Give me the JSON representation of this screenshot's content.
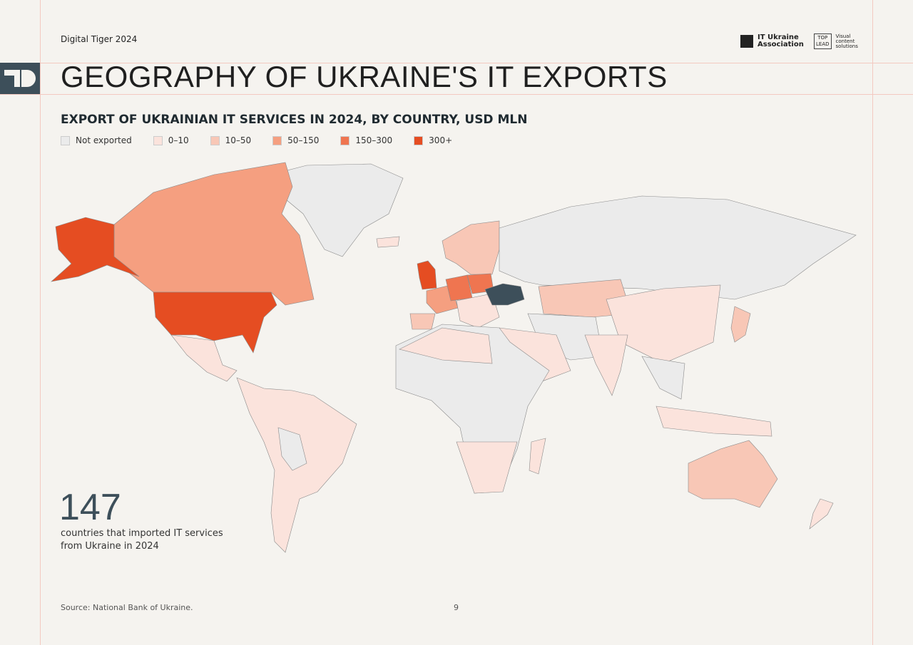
{
  "header": {
    "report": "Digital Tiger 2024",
    "logo_primary": [
      "IT Ukraine",
      "Association"
    ],
    "logo_secondary_box": [
      "TOP",
      "LEAD"
    ],
    "logo_secondary_text": [
      "Visual",
      "content",
      "solutions"
    ]
  },
  "title": "GEOGRAPHY OF UKRAINE'S IT EXPORTS",
  "map": {
    "subtitle": "EXPORT OF UKRAINIAN IT SERVICES IN 2024, BY COUNTRY, USD MLN",
    "legend": [
      {
        "label": "Not exported",
        "color": "#ebebeb"
      },
      {
        "label": "0–10",
        "color": "#fbe3dc"
      },
      {
        "label": "10–50",
        "color": "#f8c7b6"
      },
      {
        "label": "50–150",
        "color": "#f59f80"
      },
      {
        "label": "150–300",
        "color": "#ef7550"
      },
      {
        "label": "300+",
        "color": "#e54d22"
      }
    ],
    "highlight_color": "#3d4f5a"
  },
  "stat": {
    "number": "147",
    "text": [
      "countries that imported IT services",
      "from Ukraine in 2024"
    ]
  },
  "footer": {
    "source": "Source: National Bank of Ukraine.",
    "page": "9"
  }
}
